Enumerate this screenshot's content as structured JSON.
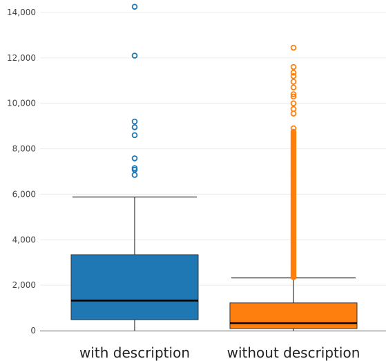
{
  "chart_data": {
    "type": "box",
    "title": "",
    "xlabel": "",
    "ylabel": "",
    "ylim": [
      0,
      14200
    ],
    "yticks": [
      0,
      2000,
      4000,
      6000,
      8000,
      10000,
      12000,
      14000
    ],
    "ytick_labels": [
      "0",
      "2,000",
      "4,000",
      "6,000",
      "8,000",
      "10,000",
      "12,000",
      "14,000"
    ],
    "grid": "horizontal",
    "categories": [
      "with description",
      "without description"
    ],
    "series": [
      {
        "category": "with description",
        "color": "#1f77b4",
        "whisker_low": 0,
        "q1": 480,
        "median": 1320,
        "q3": 3340,
        "whisker_high": 5880,
        "outliers": [
          6850,
          7080,
          7150,
          7580,
          8600,
          8950,
          9200,
          12100,
          14250
        ]
      },
      {
        "category": "without description",
        "color": "#ff7f0e",
        "whisker_low": 0,
        "q1": 90,
        "median": 330,
        "q3": 1220,
        "whisker_high": 2320,
        "outlier_band": [
          2350,
          8750
        ],
        "outliers": [
          8900,
          9550,
          9750,
          10000,
          10300,
          10400,
          10700,
          10950,
          11200,
          11350,
          11600,
          12450
        ]
      }
    ]
  }
}
